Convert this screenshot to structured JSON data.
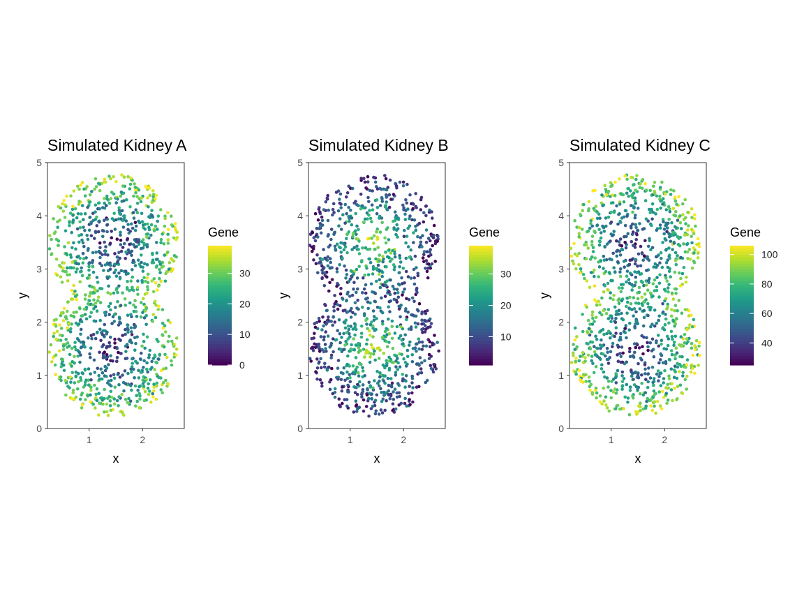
{
  "colors": {
    "viridis": [
      "#440154",
      "#482878",
      "#3e4a89",
      "#31688e",
      "#26828e",
      "#1f9e89",
      "#35b779",
      "#6ece58",
      "#b5de2b",
      "#fde725"
    ],
    "panel_border": "#333333",
    "axis_text": "#4d4d4d"
  },
  "chart_data": [
    {
      "type": "scatter",
      "title": "Simulated Kidney A",
      "xlabel": "x",
      "ylabel": "y",
      "xlim": [
        0.22,
        2.78
      ],
      "ylim": [
        0,
        5
      ],
      "x_ticks": [
        1,
        2
      ],
      "y_ticks": [
        0,
        1,
        2,
        3,
        4,
        5
      ],
      "grid": false,
      "pattern": "edge-high, center-low",
      "legend": {
        "title": "Gene",
        "range": [
          0,
          39
        ],
        "ticks": [
          0,
          10,
          20,
          30
        ],
        "placement": "right"
      },
      "point_count": 1100
    },
    {
      "type": "scatter",
      "title": "Simulated Kidney B",
      "xlabel": "x",
      "ylabel": "y",
      "xlim": [
        0.22,
        2.78
      ],
      "ylim": [
        0,
        5
      ],
      "x_ticks": [
        1,
        2
      ],
      "y_ticks": [
        0,
        1,
        2,
        3,
        4,
        5
      ],
      "grid": false,
      "pattern": "center-high, edge-low",
      "legend": {
        "title": "Gene",
        "range": [
          1,
          39
        ],
        "ticks": [
          10,
          20,
          30
        ],
        "placement": "right"
      },
      "point_count": 1100
    },
    {
      "type": "scatter",
      "title": "Simulated Kidney C",
      "xlabel": "x",
      "ylabel": "y",
      "xlim": [
        0.22,
        2.78
      ],
      "ylim": [
        0,
        5
      ],
      "x_ticks": [
        1,
        2
      ],
      "y_ticks": [
        0,
        1,
        2,
        3,
        4,
        5
      ],
      "grid": false,
      "pattern": "edge-high, center-low",
      "legend": {
        "title": "Gene",
        "range": [
          25,
          106
        ],
        "ticks": [
          40,
          60,
          80,
          100
        ],
        "placement": "right"
      },
      "point_count": 1100
    }
  ]
}
